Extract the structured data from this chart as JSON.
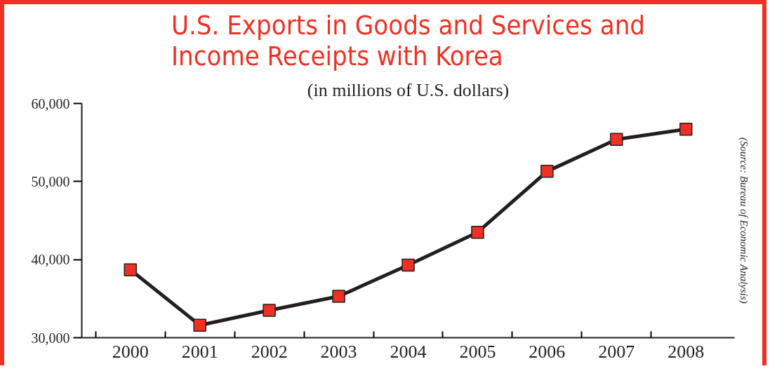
{
  "chart_data": {
    "type": "line",
    "title": "U.S. Exports in Goods and Services and\nIncome Receipts with Korea",
    "subtitle": "(in millions of U.S. dollars)",
    "categories": [
      "2000",
      "2001",
      "2002",
      "2003",
      "2004",
      "2005",
      "2006",
      "2007",
      "2008"
    ],
    "series": [
      {
        "color": "#231f20",
        "values": [
          38700,
          31600,
          33500,
          35300,
          39300,
          43500,
          51300,
          55400,
          56700
        ]
      }
    ],
    "marker": "square",
    "ylim": [
      30000,
      60000
    ],
    "yticks": [
      {
        "value": 30000,
        "label": "30,000"
      },
      {
        "value": 40000,
        "label": "40,000"
      },
      {
        "value": 50000,
        "label": "50,000"
      },
      {
        "value": 60000,
        "label": "60,000"
      }
    ],
    "grid": false,
    "annotations": [
      "(Source: Bureau of Economic Analysis)"
    ]
  }
}
